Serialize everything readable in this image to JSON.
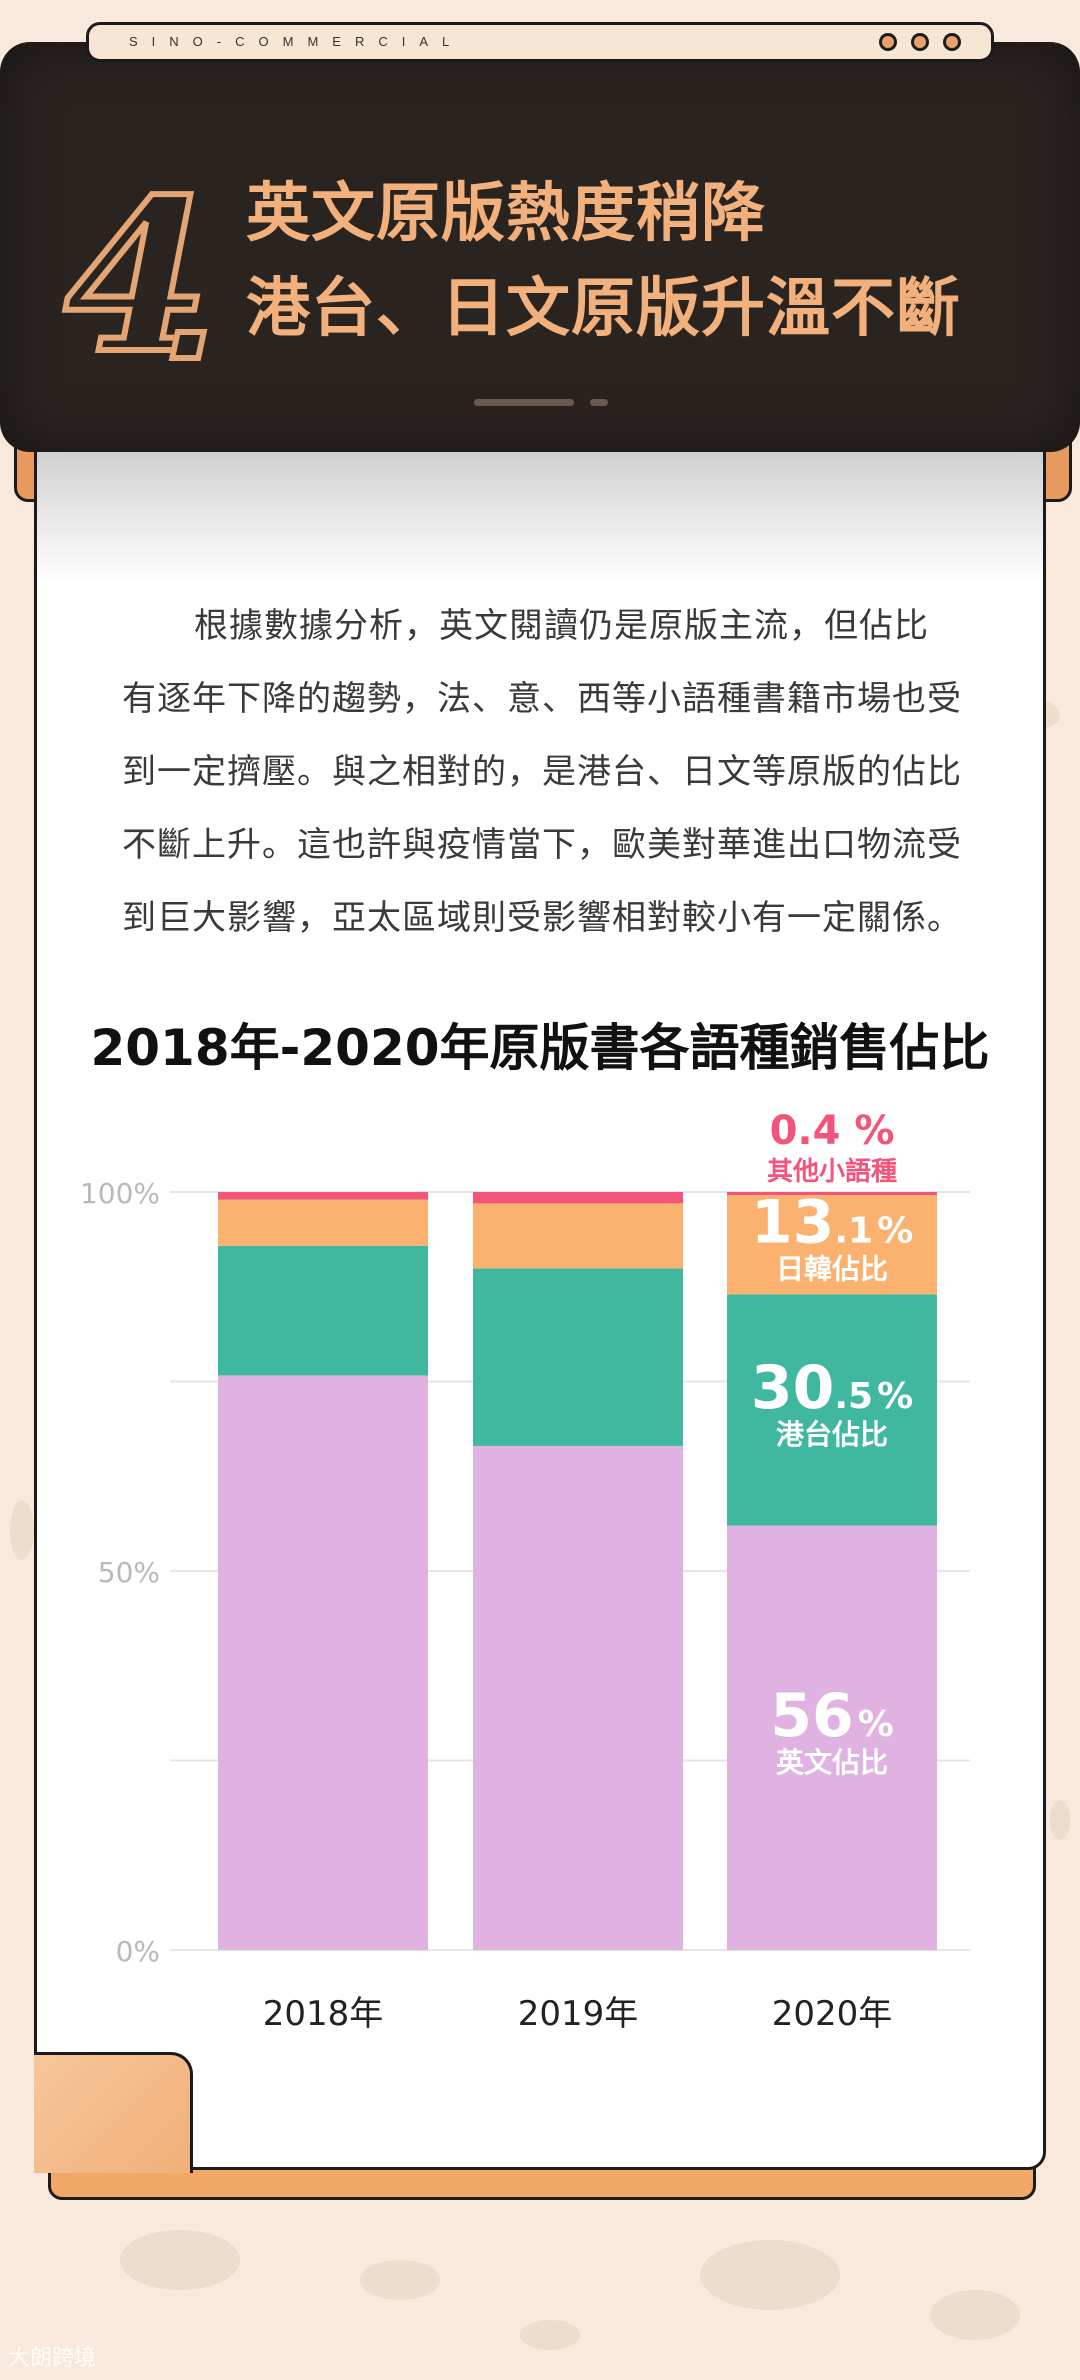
{
  "header": {
    "tab_title": "SINO-COMMERCIAL",
    "number": "4",
    "title_line1": "英文原版熱度稍降",
    "title_line2": "港台、日文原版升溫不斷"
  },
  "body": {
    "paragraph": "根據數據分析，英文閱讀仍是原版主流，但佔比有逐年下降的趨勢，法、意、西等小語種書籍市場也受到一定擠壓。與之相對的，是港台、日文等原版的佔比不斷上升。這也許與疫情當下，歐美對華進出口物流受到巨大影響，亞太區域則受影響相對較小有一定關係。"
  },
  "watermark": "大朗跨境",
  "colors": {
    "english": "#dfb2e2",
    "hktw": "#40b89f",
    "jpkr": "#fbb271",
    "other": "#f2547a",
    "accent": "#e4a572"
  },
  "chart_data": {
    "type": "bar",
    "stacked": true,
    "title": "2018年-2020年原版書各語種銷售佔比",
    "categories": [
      "2018年",
      "2019年",
      "2020年"
    ],
    "series": [
      {
        "key": "english",
        "values": [
          75.8,
          66.5,
          56
        ]
      },
      {
        "key": "hktw",
        "values": [
          17.1,
          23.4,
          30.5
        ]
      },
      {
        "key": "jpkr",
        "values": [
          6.1,
          8.6,
          13.1
        ]
      },
      {
        "key": "other",
        "values": [
          1,
          1.5,
          0.4
        ]
      }
    ],
    "ylim": [
      0,
      100
    ],
    "yticks": [
      "0%",
      "50%",
      "100%"
    ],
    "grid": true,
    "annotations": [
      {
        "series": "other",
        "value": "0.4 %",
        "label": "其他小語種"
      },
      {
        "series": "jpkr",
        "value_main": "13",
        "value_dec": ".1",
        "value_pct": "%",
        "label": "日韓佔比"
      },
      {
        "series": "hktw",
        "value_main": "30",
        "value_dec": ".5",
        "value_pct": "%",
        "label": "港台佔比"
      },
      {
        "series": "english",
        "value_main": "56",
        "value_dec": "",
        "value_pct": "%",
        "label": "英文佔比"
      }
    ]
  }
}
